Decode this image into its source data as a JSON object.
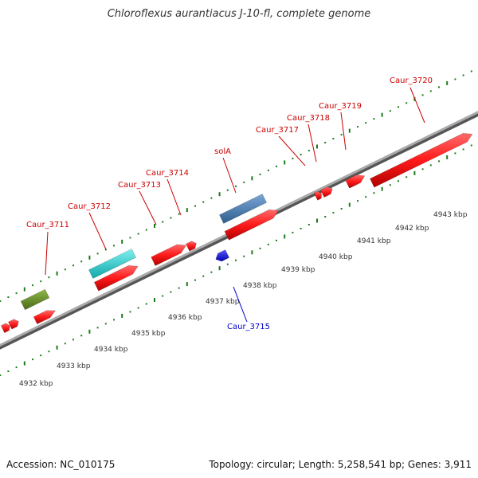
{
  "title": "Chloroflexus aurantiacus J-10-fl, complete genome",
  "footer": {
    "accession": "Accession: NC_010175",
    "summary": "Topology: circular; Length: 5,258,541 bp; Genes: 3,911"
  },
  "colors": {
    "forward_gene": "#ff1a1a",
    "reverse_gene": "#1010e0",
    "label_forward": "#cc0000",
    "label_reverse": "#0000cc",
    "tick": "#1a7a1a",
    "backbone": "#888888",
    "feature_cyan": "#20d0d0",
    "feature_steelblue": "#4a7fb5",
    "feature_olive": "#6b8e23"
  },
  "tick_labels": [
    "4932 kbp",
    "4933 kbp",
    "4934 kbp",
    "4935 kbp",
    "4936 kbp",
    "4937 kbp",
    "4938 kbp",
    "4939 kbp",
    "4940 kbp",
    "4941 kbp",
    "4942 kbp",
    "4943 kbp"
  ],
  "genes": [
    {
      "name": "Caur_3711",
      "strand": "forward"
    },
    {
      "name": "Caur_3712",
      "strand": "forward"
    },
    {
      "name": "Caur_3713",
      "strand": "forward"
    },
    {
      "name": "Caur_3714",
      "strand": "forward"
    },
    {
      "name": "Caur_3715",
      "strand": "reverse"
    },
    {
      "name": "solA",
      "strand": "forward"
    },
    {
      "name": "Caur_3717",
      "strand": "forward"
    },
    {
      "name": "Caur_3718",
      "strand": "forward"
    },
    {
      "name": "Caur_3719",
      "strand": "forward"
    },
    {
      "name": "Caur_3720",
      "strand": "forward"
    }
  ]
}
